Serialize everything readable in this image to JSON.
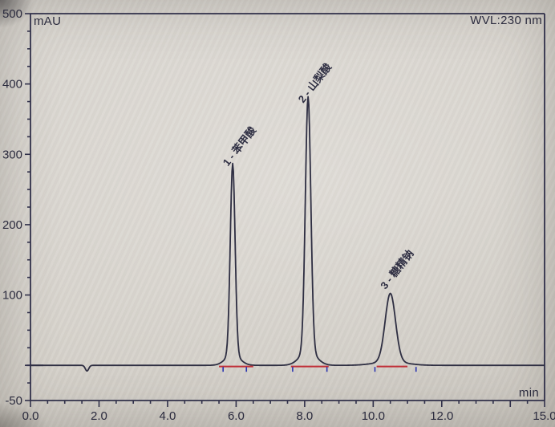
{
  "labels": {
    "y_axis_unit": "mAU",
    "wavelength": "WVL:230 nm",
    "x_axis_unit": "min"
  },
  "chart_data": {
    "type": "line",
    "ylabel": "mAU",
    "xlabel": "min",
    "annotation": "WVL:230 nm",
    "xlim": [
      0,
      15
    ],
    "ylim": [
      -50,
      500
    ],
    "x_minor_tick_step": 0.5,
    "x_major_tick_step": 2,
    "y_minor_tick_step": 25,
    "y_major_tick_step": 100,
    "x_tick_labels": [
      {
        "v": 0,
        "label": "0.0"
      },
      {
        "v": 2,
        "label": "2.0"
      },
      {
        "v": 4,
        "label": "4.0"
      },
      {
        "v": 6,
        "label": "6.0"
      },
      {
        "v": 8,
        "label": "8.0"
      },
      {
        "v": 10,
        "label": "10.0"
      },
      {
        "v": 12,
        "label": "12.0"
      },
      {
        "v": 15,
        "label": "15.0"
      }
    ],
    "y_tick_labels": [
      {
        "v": 500,
        "label": "500"
      },
      {
        "v": 400,
        "label": "400"
      },
      {
        "v": 300,
        "label": "300"
      },
      {
        "v": 200,
        "label": "200"
      },
      {
        "v": 100,
        "label": "100"
      },
      {
        "v": -50,
        "label": "-50"
      }
    ],
    "baseline_mau": 0,
    "peaks": [
      {
        "number": 1,
        "label": "1 - 苯甲酸",
        "rt_min": 5.9,
        "height_mau": 272,
        "sigma_min": 0.07,
        "integration_start_min": 5.5,
        "integration_end_min": 6.5,
        "marker_min": [
          5.62,
          6.3
        ]
      },
      {
        "number": 2,
        "label": "2 - 山梨酸",
        "rt_min": 8.1,
        "height_mau": 362,
        "sigma_min": 0.08,
        "integration_start_min": 7.6,
        "integration_end_min": 8.7,
        "marker_min": [
          7.65,
          8.65
        ]
      },
      {
        "number": 3,
        "label": "3 - 糖精钠",
        "rt_min": 10.5,
        "height_mau": 97,
        "sigma_min": 0.15,
        "integration_start_min": 10.1,
        "integration_end_min": 11.0,
        "marker_min": [
          10.05,
          11.25
        ]
      }
    ],
    "artifacts": [
      {
        "type": "negative_dip",
        "t_min": 1.65,
        "depth_mau": -8,
        "sigma_min": 0.05
      }
    ],
    "colors": {
      "trace": "#2e2e42",
      "axis": "#30304a",
      "integration_baseline": "#c03038",
      "peak_marker": "#2a35b0",
      "tick_label": "#2b2b3e"
    }
  }
}
